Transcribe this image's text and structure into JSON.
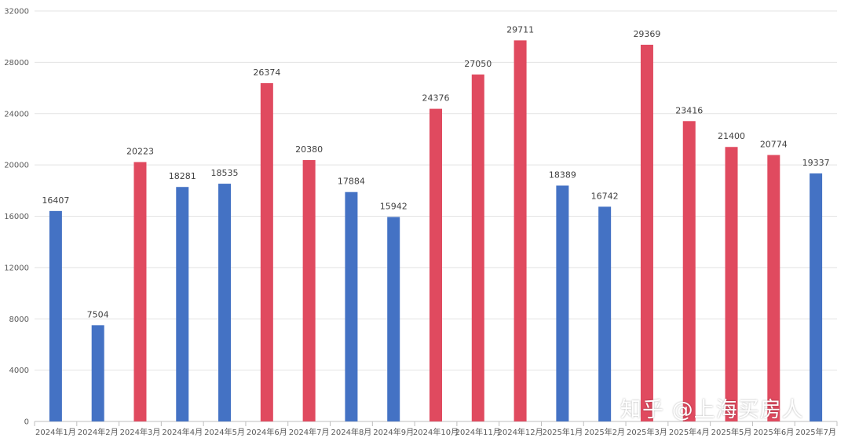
{
  "chart_data": {
    "type": "bar",
    "categories": [
      "2024年1月",
      "2024年2月",
      "2024年3月",
      "2024年4月",
      "2024年5月",
      "2024年6月",
      "2024年7月",
      "2024年8月",
      "2024年9月",
      "2024年10月",
      "2024年11月",
      "2024年12月",
      "2025年1月",
      "2025年2月",
      "2025年3月",
      "2025年4月",
      "2025年5月",
      "2025年6月",
      "2025年7月"
    ],
    "values": [
      16407,
      7504,
      20223,
      18281,
      18535,
      26374,
      20380,
      17884,
      15942,
      24376,
      27050,
      29711,
      18389,
      16742,
      29369,
      23416,
      21400,
      20774,
      19337
    ],
    "bar_colors": [
      "#4472c4",
      "#4472c4",
      "#e04a5f",
      "#4472c4",
      "#4472c4",
      "#e04a5f",
      "#e04a5f",
      "#4472c4",
      "#4472c4",
      "#e04a5f",
      "#e04a5f",
      "#e04a5f",
      "#4472c4",
      "#4472c4",
      "#e04a5f",
      "#e04a5f",
      "#e04a5f",
      "#e04a5f",
      "#4472c4"
    ],
    "title": "",
    "xlabel": "",
    "ylabel": "",
    "ylim": [
      0,
      32000
    ],
    "yticks": [
      0,
      4000,
      8000,
      12000,
      16000,
      20000,
      24000,
      28000,
      32000
    ],
    "grid": true,
    "data_labels": true
  },
  "watermark": "知乎 @上海买房人"
}
